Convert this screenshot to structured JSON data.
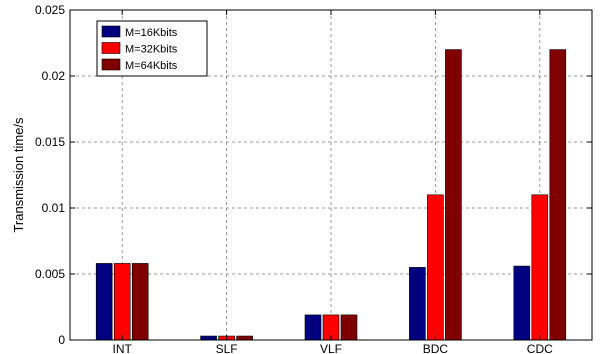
{
  "chart_data": {
    "type": "bar",
    "categories": [
      "INT",
      "SLF",
      "VLF",
      "BDC",
      "CDC"
    ],
    "series": [
      {
        "name": "M=16Kbits",
        "color": "#000080",
        "values": [
          0.0058,
          0.0003,
          0.0019,
          0.0055,
          0.0056
        ]
      },
      {
        "name": "M=32Kbits",
        "color": "#ff0000",
        "values": [
          0.0058,
          0.0003,
          0.0019,
          0.011,
          0.011
        ]
      },
      {
        "name": "M=64Kbits",
        "color": "#800000",
        "values": [
          0.0058,
          0.0003,
          0.0019,
          0.022,
          0.022
        ]
      }
    ],
    "xlabel": "",
    "ylabel": "Transmission time/s",
    "ylim": [
      0,
      0.025
    ],
    "yticks": [
      0,
      0.005,
      0.01,
      0.015,
      0.02,
      0.025
    ],
    "ytick_labels": [
      "0",
      "0.005",
      "0.01",
      "0.015",
      "0.02",
      "0.025"
    ],
    "grid": true,
    "legend_position": "top-left"
  }
}
